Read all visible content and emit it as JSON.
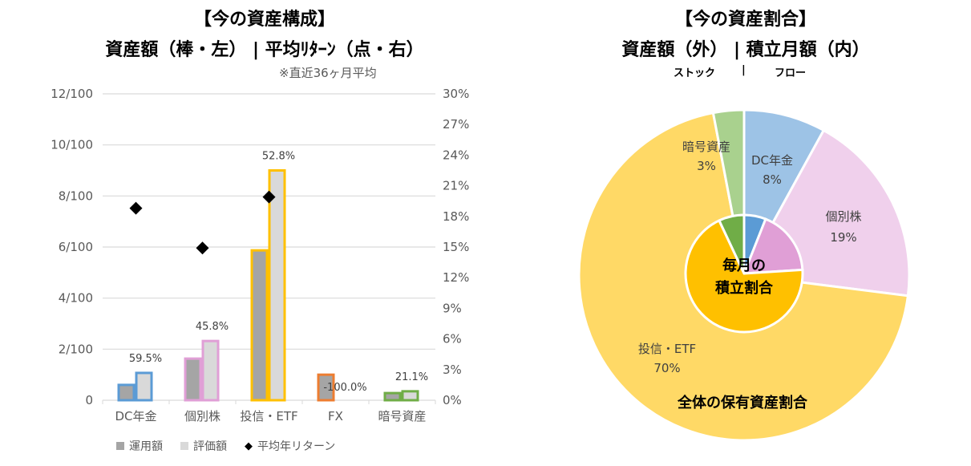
{
  "left": {
    "title1": "【今の資産構成】",
    "title2": "資産額（棒・左） | 平均ﾘﾀｰﾝ（点・右）",
    "note": "※直近36ヶ月平均"
  },
  "right": {
    "title1": "【今の資産割合】",
    "title2": "資産額（外） | 積立月額（内）",
    "sub_left": "ストック",
    "sub_sep": "|",
    "sub_right": "フロー",
    "inner_label_1": "毎月の",
    "inner_label_2": "積立割合",
    "outer_label": "全体の保有資産割合"
  },
  "chart_data": [
    {
      "type": "bar",
      "categories": [
        "DC年金",
        "個別株",
        "投信・ETF",
        "FX",
        "暗号資産"
      ],
      "category_colors": [
        "#5B9BD5",
        "#E09FD6",
        "#FFC000",
        "#ED7D31",
        "#70AD47"
      ],
      "y_ticks": [
        "0",
        "2/100",
        "4/100",
        "6/100",
        "8/100",
        "10/100",
        "12/100"
      ],
      "ylim": [
        0,
        12
      ],
      "y2_ticks": [
        "0%",
        "3%",
        "6%",
        "9%",
        "12%",
        "15%",
        "18%",
        "21%",
        "24%",
        "27%",
        "30%"
      ],
      "y2lim": [
        0,
        30
      ],
      "series": [
        {
          "name": "運用額",
          "color": "#A5A5A5",
          "values": [
            0.6,
            1.63,
            5.87,
            1.0,
            0.28
          ]
        },
        {
          "name": "評価額",
          "color": "#D9D9D9",
          "values": [
            1.07,
            2.32,
            9.0,
            0.0,
            0.35
          ]
        },
        {
          "name": "平均年リターン",
          "type": "scatter",
          "marker": "diamond",
          "color": "#000000",
          "values": [
            18.8,
            14.9,
            19.9,
            null,
            null
          ]
        }
      ],
      "data_labels": [
        "59.5%",
        "45.8%",
        "52.8%",
        "-100.0%",
        "21.1%"
      ],
      "grid": true,
      "legend": "bottom"
    },
    {
      "type": "pie",
      "name": "outer",
      "categories": [
        "DC年金",
        "個別株",
        "投信・ETF",
        "暗号資産"
      ],
      "values": [
        8,
        19,
        70,
        3
      ],
      "labels": [
        "8%",
        "19%",
        "70%",
        "3%"
      ],
      "colors": [
        "#9DC3E6",
        "#F0D0EC",
        "#FFD966",
        "#A9D18E"
      ]
    },
    {
      "type": "pie",
      "name": "inner",
      "categories": [
        "DC年金",
        "個別株",
        "投信・ETF",
        "暗号資産"
      ],
      "values": [
        6,
        18,
        69,
        7
      ],
      "colors": [
        "#5B9BD5",
        "#E09FD6",
        "#FFC000",
        "#70AD47"
      ]
    }
  ]
}
